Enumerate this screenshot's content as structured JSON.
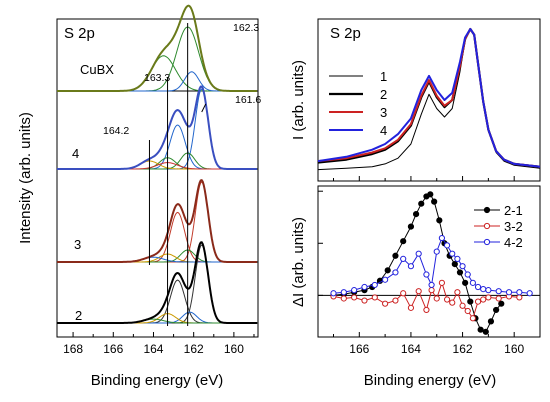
{
  "chart_data": [
    {
      "type": "line",
      "panel": "left",
      "title": "S 2p",
      "xlabel": "Binding energy (eV)",
      "ylabel": "Intensity (arb. units)",
      "xlim": [
        168.8,
        158.8
      ],
      "x_reversed": true,
      "x_ticks": [
        168,
        166,
        164,
        162,
        160
      ],
      "annotations": [
        {
          "text": "162.3",
          "x": 162.3
        },
        {
          "text": "163.3",
          "x": 163.3
        },
        {
          "text": "164.2",
          "x": 164.2
        },
        {
          "text": "161.6",
          "x": 161.6
        }
      ],
      "spectra": [
        {
          "label": "CuBX",
          "offset": 3,
          "components": [
            {
              "center": 162.3,
              "amp": 1.0,
              "width": 0.55,
              "color": "#2e8a2e"
            },
            {
              "center": 163.5,
              "amp": 0.55,
              "width": 0.6,
              "color": "#2e8a2e"
            },
            {
              "center": 162.1,
              "amp": 0.3,
              "width": 0.35,
              "color": "#2266cc"
            }
          ],
          "envelope_color": "#6a7a1a"
        },
        {
          "label": "4",
          "offset": 2,
          "components": [
            {
              "center": 161.6,
              "amp": 1.0,
              "width": 0.32,
              "color": "#2266cc"
            },
            {
              "center": 162.8,
              "amp": 0.55,
              "width": 0.38,
              "color": "#2266cc"
            },
            {
              "center": 162.3,
              "amp": 0.2,
              "width": 0.35,
              "color": "#2e8a2e"
            },
            {
              "center": 163.3,
              "amp": 0.14,
              "width": 0.4,
              "color": "#2e8a2e"
            },
            {
              "center": 164.2,
              "amp": 0.1,
              "width": 0.45,
              "color": "#cc9a00"
            },
            {
              "center": 163.3,
              "amp": 0.08,
              "width": 0.5,
              "color": "#cc3333"
            }
          ],
          "envelope_color": "#3a4fc0"
        },
        {
          "label": "3",
          "offset": 1,
          "components": [
            {
              "center": 161.6,
              "amp": 1.0,
              "width": 0.32,
              "color": "#c23b2a"
            },
            {
              "center": 162.8,
              "amp": 0.62,
              "width": 0.36,
              "color": "#c23b2a"
            },
            {
              "center": 162.3,
              "amp": 0.15,
              "width": 0.35,
              "color": "#2e8a2e"
            },
            {
              "center": 163.3,
              "amp": 0.1,
              "width": 0.4,
              "color": "#cc9a00"
            },
            {
              "center": 164.0,
              "amp": 0.06,
              "width": 0.5,
              "color": "#2266cc"
            }
          ],
          "envelope_color": "#8a2a1a"
        },
        {
          "label": "2",
          "offset": 0,
          "components": [
            {
              "center": 161.6,
              "amp": 1.0,
              "width": 0.32,
              "color": "#333333"
            },
            {
              "center": 162.8,
              "amp": 0.55,
              "width": 0.36,
              "color": "#333333"
            },
            {
              "center": 162.2,
              "amp": 0.14,
              "width": 0.35,
              "color": "#2266cc"
            },
            {
              "center": 163.3,
              "amp": 0.12,
              "width": 0.4,
              "color": "#cc9a00"
            },
            {
              "center": 164.0,
              "amp": 0.05,
              "width": 0.5,
              "color": "#2e8a2e"
            }
          ],
          "envelope_color": "#000000"
        }
      ]
    },
    {
      "type": "line",
      "panel": "right-top",
      "title": "S 2p",
      "ylabel": "I (arb. units)",
      "xlim": [
        167.6,
        159.0
      ],
      "x_reversed": true,
      "legend_position": "left",
      "series": [
        {
          "name": "1",
          "color": "#000000",
          "width": 1,
          "x": [
            167.6,
            166.5,
            165.5,
            165,
            164.5,
            164,
            163.6,
            163.3,
            163.0,
            162.7,
            162.4,
            162.1,
            161.9,
            161.7,
            161.55,
            161.4,
            161.2,
            161.0,
            160.7,
            160.4,
            160,
            159.5,
            159.0
          ],
          "y": [
            0.01,
            0.02,
            0.03,
            0.05,
            0.09,
            0.19,
            0.4,
            0.54,
            0.44,
            0.38,
            0.44,
            0.7,
            0.92,
            1.0,
            0.96,
            0.75,
            0.48,
            0.28,
            0.13,
            0.07,
            0.04,
            0.03,
            0.02
          ]
        },
        {
          "name": "2",
          "color": "#000000",
          "width": 2.2,
          "x": [
            167.6,
            166.5,
            165.5,
            165,
            164.5,
            164,
            163.6,
            163.3,
            163.0,
            162.7,
            162.4,
            162.1,
            161.9,
            161.7,
            161.55,
            161.4,
            161.2,
            161.0,
            160.7,
            160.4,
            160,
            159.5,
            159.0
          ],
          "y": [
            0.06,
            0.08,
            0.12,
            0.15,
            0.21,
            0.32,
            0.52,
            0.63,
            0.52,
            0.45,
            0.5,
            0.74,
            0.93,
            1.0,
            0.96,
            0.76,
            0.49,
            0.29,
            0.14,
            0.08,
            0.05,
            0.04,
            0.03
          ]
        },
        {
          "name": "3",
          "color": "#cc2222",
          "width": 2,
          "x": [
            167.6,
            166.5,
            165.5,
            165,
            164.5,
            164,
            163.6,
            163.3,
            163.0,
            162.7,
            162.4,
            162.1,
            161.9,
            161.7,
            161.55,
            161.4,
            161.2,
            161.0,
            160.7,
            160.4,
            160,
            159.5,
            159.0
          ],
          "y": [
            0.07,
            0.09,
            0.13,
            0.16,
            0.22,
            0.33,
            0.53,
            0.64,
            0.53,
            0.46,
            0.5,
            0.74,
            0.93,
            1.0,
            0.96,
            0.76,
            0.49,
            0.29,
            0.14,
            0.08,
            0.05,
            0.04,
            0.03
          ]
        },
        {
          "name": "4",
          "color": "#2222dd",
          "width": 2,
          "x": [
            167.6,
            166.5,
            165.5,
            165,
            164.5,
            164,
            163.6,
            163.3,
            163.0,
            162.7,
            162.4,
            162.1,
            161.9,
            161.7,
            161.55,
            161.4,
            161.2,
            161.0,
            160.7,
            160.4,
            160,
            159.5,
            159.0
          ],
          "y": [
            0.07,
            0.1,
            0.15,
            0.19,
            0.26,
            0.37,
            0.57,
            0.67,
            0.57,
            0.5,
            0.55,
            0.77,
            0.94,
            1.0,
            0.96,
            0.76,
            0.49,
            0.29,
            0.14,
            0.08,
            0.05,
            0.04,
            0.03
          ]
        }
      ]
    },
    {
      "type": "scatter",
      "panel": "right-bottom",
      "xlabel": "Binding energy (eV)",
      "ylabel": "ΔI (arb. units)",
      "xlim": [
        167.6,
        159.0
      ],
      "x_reversed": true,
      "x_ticks": [
        166,
        164,
        162,
        160
      ],
      "ylim": [
        -0.4,
        1.05
      ],
      "legend_position": "top-right",
      "series": [
        {
          "name": "2-1",
          "color": "#000000",
          "marker": "filled-circle",
          "x": [
            167.0,
            166.6,
            166.2,
            165.8,
            165.5,
            165.2,
            164.9,
            164.6,
            164.3,
            164.0,
            163.8,
            163.6,
            163.4,
            163.25,
            163.1,
            162.9,
            162.7,
            162.5,
            162.3,
            162.1,
            161.9,
            161.7,
            161.5,
            161.3,
            161.1,
            160.9,
            160.7,
            160.5
          ],
          "y": [
            0.0,
            0.01,
            0.03,
            0.05,
            0.08,
            0.14,
            0.24,
            0.38,
            0.52,
            0.66,
            0.78,
            0.88,
            0.95,
            0.97,
            0.9,
            0.72,
            0.5,
            0.38,
            0.3,
            0.22,
            0.12,
            -0.06,
            -0.22,
            -0.33,
            -0.35,
            -0.25,
            -0.14,
            -0.08
          ]
        },
        {
          "name": "3-2",
          "color": "#cc2222",
          "marker": "open-circle",
          "x": [
            167.0,
            166.6,
            166.2,
            165.8,
            165.4,
            165.0,
            164.6,
            164.3,
            164.0,
            163.7,
            163.4,
            163.2,
            163.0,
            162.8,
            162.6,
            162.4,
            162.2,
            162.0,
            161.8,
            161.6,
            161.4,
            161.2,
            161.0,
            160.6,
            160.2,
            159.8
          ],
          "y": [
            -0.01,
            -0.03,
            -0.02,
            -0.05,
            -0.02,
            -0.08,
            -0.05,
            0.02,
            -0.12,
            0.04,
            -0.14,
            0.05,
            -0.03,
            0.12,
            -0.04,
            -0.07,
            0.03,
            -0.1,
            -0.15,
            -0.22,
            -0.06,
            -0.04,
            -0.02,
            -0.03,
            -0.01,
            -0.02
          ]
        },
        {
          "name": "4-2",
          "color": "#2222dd",
          "marker": "open-circle",
          "x": [
            167.0,
            166.6,
            166.2,
            165.8,
            165.4,
            165.0,
            164.6,
            164.3,
            164.0,
            163.7,
            163.4,
            163.2,
            163.0,
            162.8,
            162.6,
            162.4,
            162.2,
            162.0,
            161.8,
            161.6,
            161.4,
            161.2,
            161.0,
            160.6,
            160.2,
            159.8,
            159.4
          ],
          "y": [
            0.02,
            0.03,
            0.05,
            0.08,
            0.1,
            0.15,
            0.22,
            0.35,
            0.28,
            0.4,
            0.2,
            0.1,
            0.42,
            0.55,
            0.48,
            0.4,
            0.35,
            0.28,
            0.2,
            0.12,
            0.08,
            0.06,
            0.05,
            0.04,
            0.03,
            0.03,
            0.02
          ]
        }
      ]
    }
  ]
}
